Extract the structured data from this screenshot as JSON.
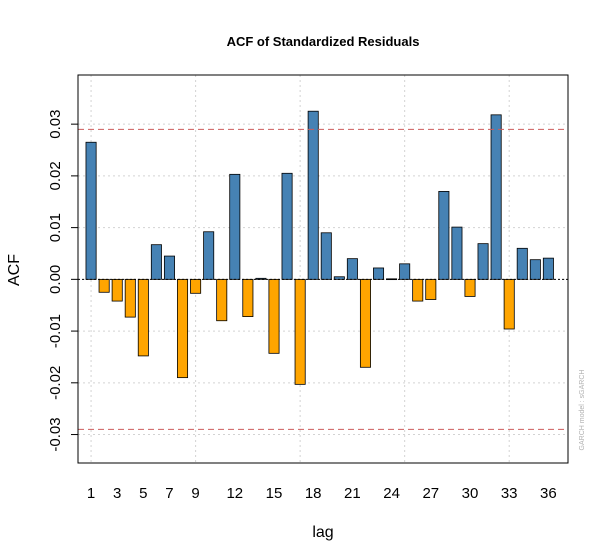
{
  "chart_data": {
    "type": "bar",
    "title": "ACF of Standardized Residuals",
    "xlabel": "lag",
    "ylabel": "ACF",
    "watermark": "GARCH model : sGARCH",
    "ylim": [
      -0.0355,
      0.0395
    ],
    "xlim": [
      0,
      37.5
    ],
    "y_ticks": [
      -0.03,
      -0.02,
      -0.01,
      0.0,
      0.01,
      0.02,
      0.03
    ],
    "y_tick_labels": [
      "-0.03",
      "-0.02",
      "-0.01",
      "0.00",
      "0.01",
      "0.02",
      "0.03"
    ],
    "x_ticks": [
      1,
      3,
      5,
      7,
      9,
      12,
      15,
      18,
      21,
      24,
      27,
      30,
      33,
      36
    ],
    "x_tick_labels": [
      "1",
      "3",
      "5",
      "7",
      "9",
      "12",
      "15",
      "18",
      "21",
      "24",
      "27",
      "30",
      "33",
      "36"
    ],
    "x_grid": [
      1,
      9,
      17,
      25,
      33
    ],
    "grid": true,
    "confidence_bounds": [
      0.029,
      -0.029
    ],
    "lags": [
      1,
      2,
      3,
      4,
      5,
      6,
      7,
      8,
      9,
      10,
      11,
      12,
      13,
      14,
      15,
      16,
      17,
      18,
      19,
      20,
      21,
      22,
      23,
      24,
      25,
      26,
      27,
      28,
      29,
      30,
      31,
      32,
      33,
      34,
      35,
      36
    ],
    "values": [
      0.0265,
      -0.0025,
      -0.0042,
      -0.0073,
      -0.0148,
      0.0067,
      0.0045,
      -0.019,
      -0.0027,
      0.0092,
      -0.008,
      0.0203,
      -0.0072,
      0.0002,
      -0.0143,
      0.0205,
      -0.0203,
      0.0325,
      0.009,
      0.0005,
      0.004,
      -0.017,
      0.0022,
      0.0001,
      0.003,
      -0.0042,
      -0.0039,
      0.017,
      0.0101,
      -0.0033,
      0.0069,
      0.0318,
      -0.0096,
      0.006,
      0.0038,
      0.0041
    ],
    "colors": {
      "positive": "#4682b4",
      "negative": "#ffa500",
      "bound": "#cd5c5c",
      "grid": "#d3d3d3",
      "zero": "#000000"
    }
  }
}
